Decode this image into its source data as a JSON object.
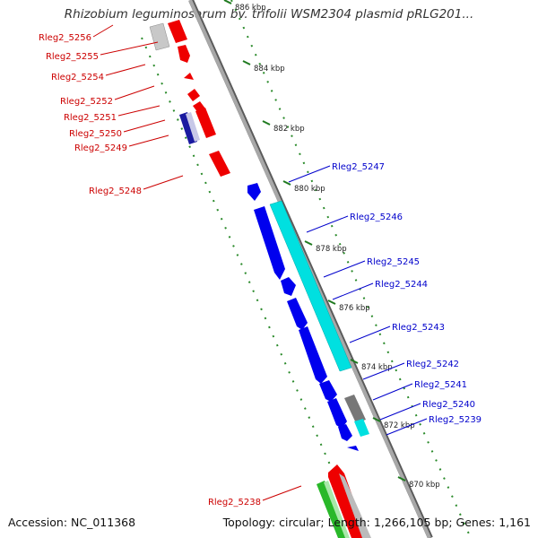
{
  "title": "Rhizobium leguminosarum bv. trifolii WSM2304 plasmid pRLG201...",
  "footer": {
    "accession": "Accession: NC_011368",
    "topology": "Topology: circular; Length: 1,266,105 bp; Genes: 1,161"
  },
  "colors": {
    "backbone": "#8c8c8c",
    "forward_gene": "#0000ee",
    "forward_feature": "#00e0e0",
    "reverse_gene": "#ee0000",
    "reverse_feature": "#29b829",
    "forward_label": "#0000cc",
    "reverse_label": "#cc0000",
    "pseudo": "#bbbbbb",
    "dotted_ring": "#2a8a2a"
  },
  "scale": {
    "ticks": [
      {
        "label": "886 kbp",
        "kbp": 886
      },
      {
        "label": "884 kbp",
        "kbp": 884
      },
      {
        "label": "882 kbp",
        "kbp": 882
      },
      {
        "label": "880 kbp",
        "kbp": 880
      },
      {
        "label": "878 kbp",
        "kbp": 878
      },
      {
        "label": "876 kbp",
        "kbp": 876
      },
      {
        "label": "874 kbp",
        "kbp": 874
      },
      {
        "label": "872 kbp",
        "kbp": 872
      },
      {
        "label": "870 kbp",
        "kbp": 870
      }
    ]
  },
  "reverse_genes": [
    {
      "label": "Rleg2_5256"
    },
    {
      "label": "Rleg2_5255"
    },
    {
      "label": "Rleg2_5254"
    },
    {
      "label": "Rleg2_5252"
    },
    {
      "label": "Rleg2_5251"
    },
    {
      "label": "Rleg2_5250"
    },
    {
      "label": "Rleg2_5249"
    },
    {
      "label": "Rleg2_5248"
    },
    {
      "label": "Rleg2_5238"
    }
  ],
  "forward_genes": [
    {
      "label": "Rleg2_5247"
    },
    {
      "label": "Rleg2_5246"
    },
    {
      "label": "Rleg2_5245"
    },
    {
      "label": "Rleg2_5244"
    },
    {
      "label": "Rleg2_5243"
    },
    {
      "label": "Rleg2_5242"
    },
    {
      "label": "Rleg2_5241"
    },
    {
      "label": "Rleg2_5240"
    },
    {
      "label": "Rleg2_5239"
    }
  ]
}
